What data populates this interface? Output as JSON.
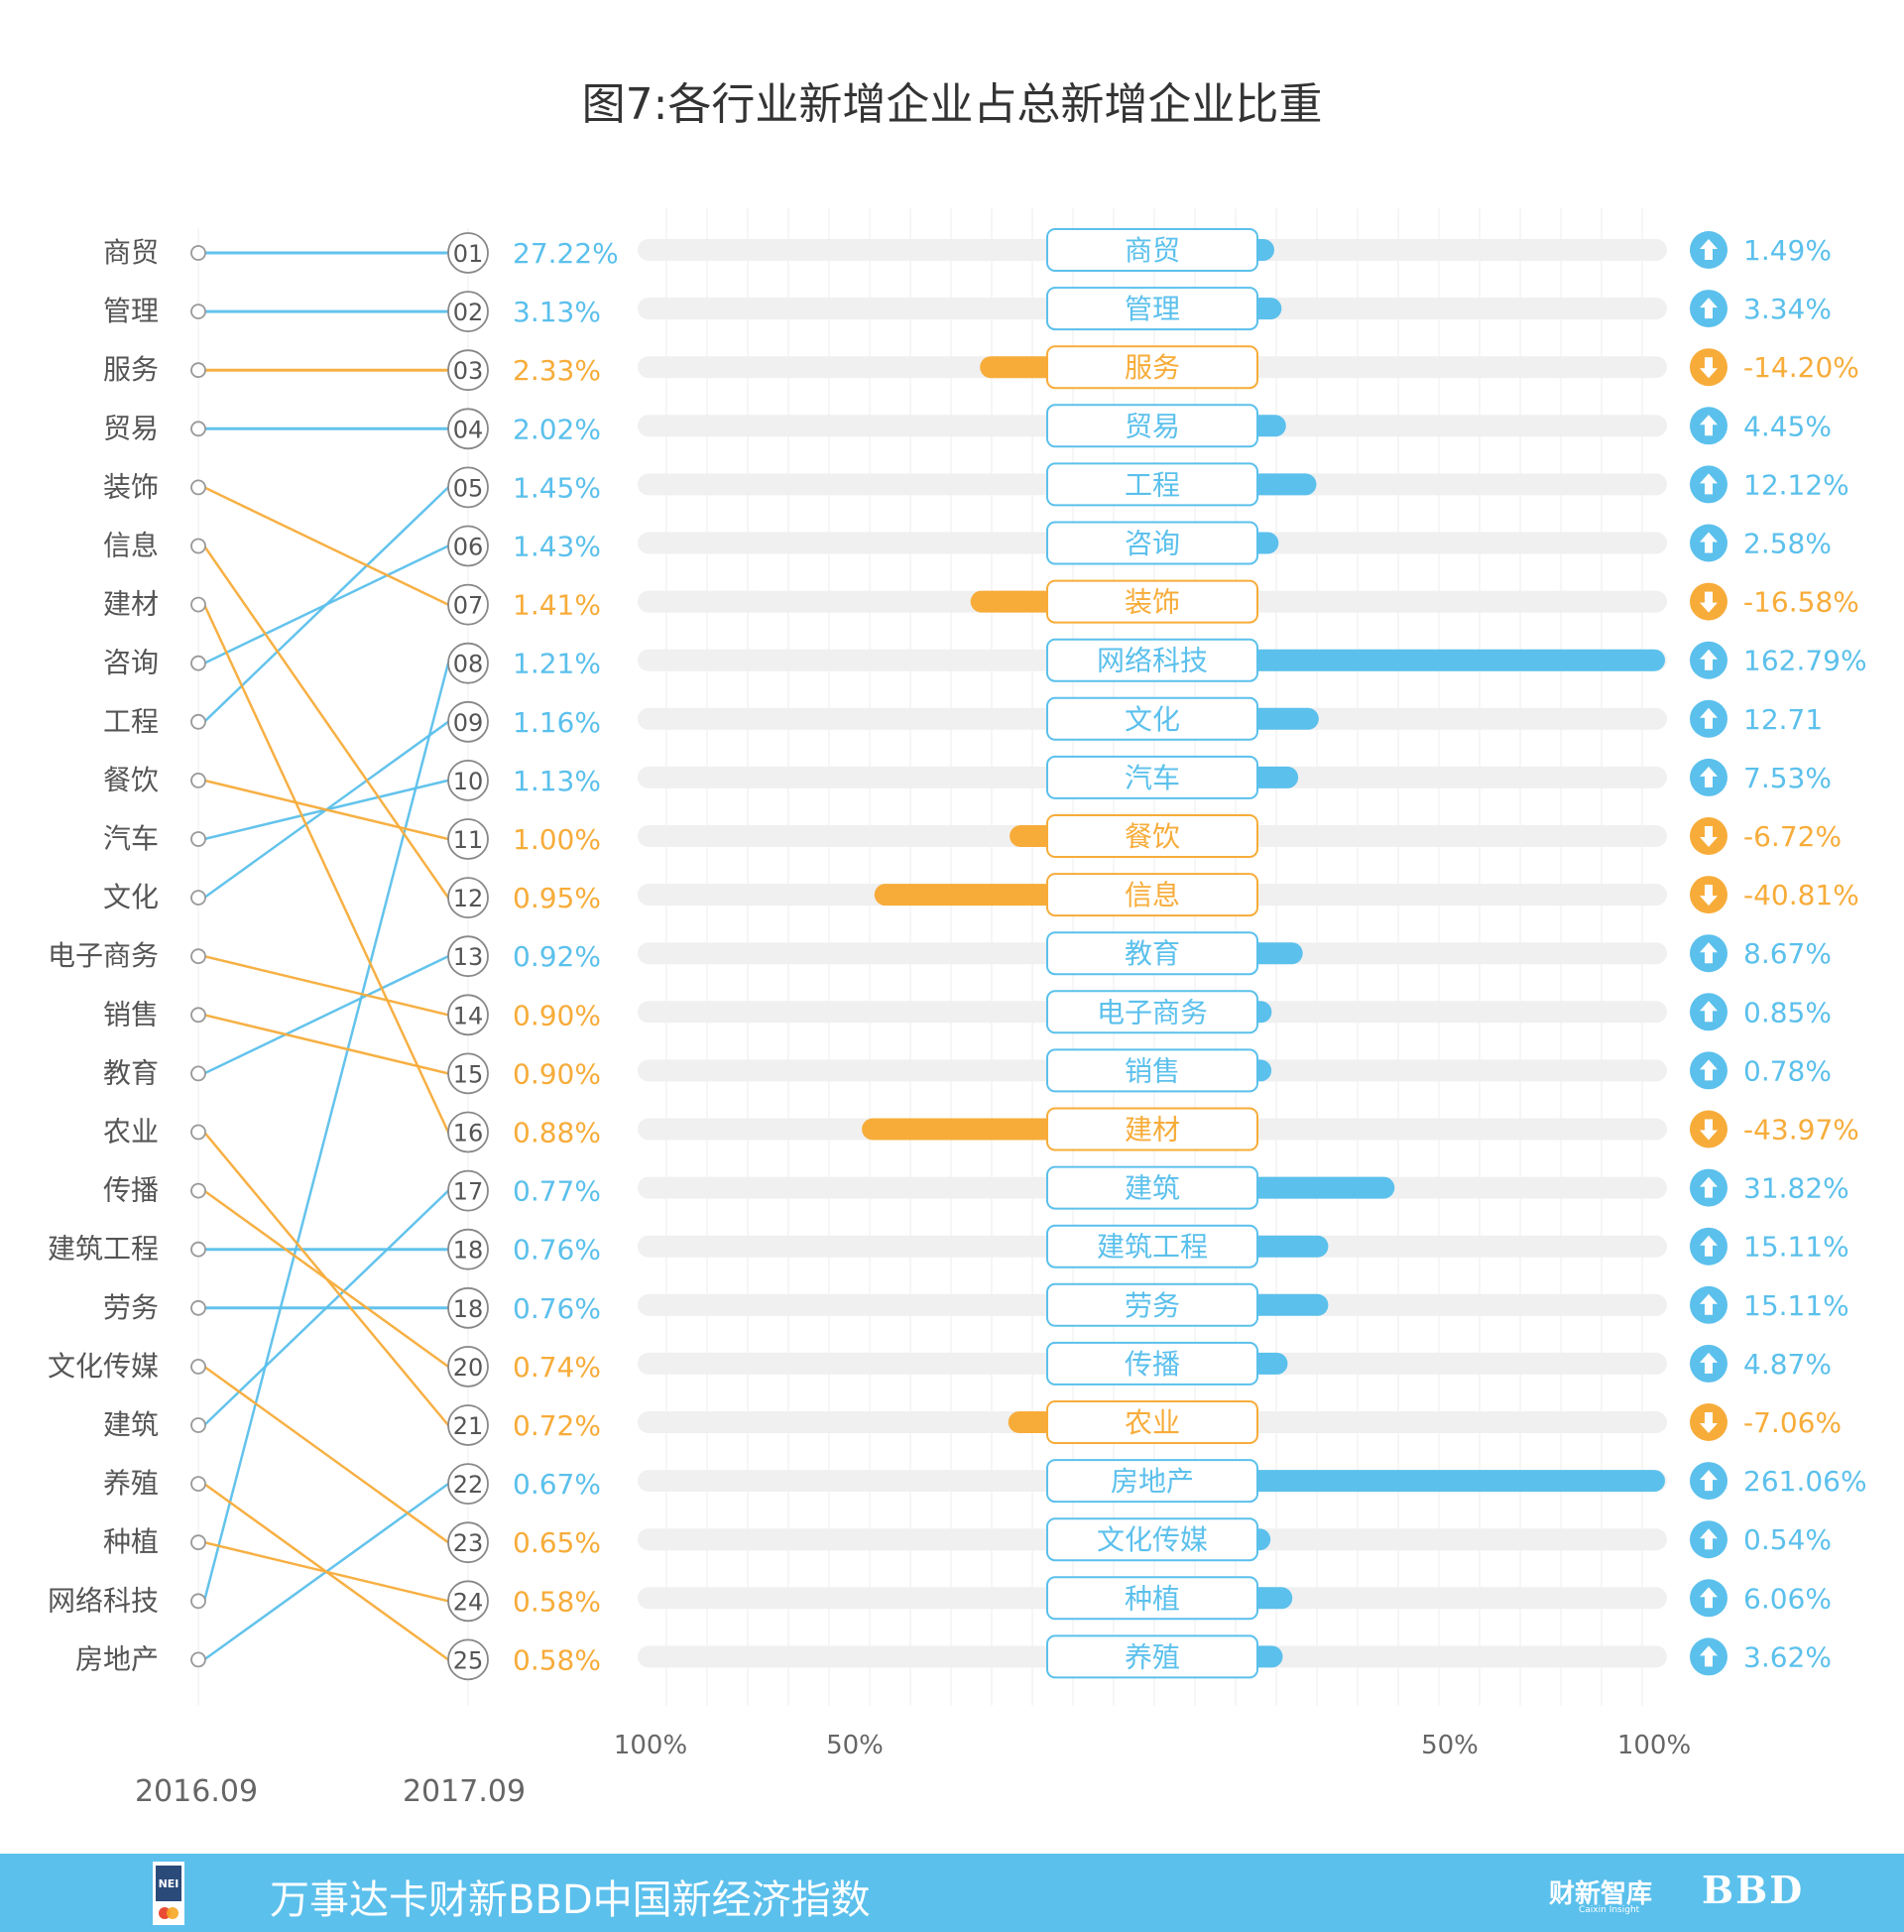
{
  "chart_data": {
    "type": "bar",
    "title": "图7:各行业新增企业占总新增企业比重",
    "period_labels": [
      "2016.09",
      "2017.09"
    ],
    "axis_ticks_left": [
      "100%",
      "50%"
    ],
    "axis_ticks_right": [
      "50%",
      "100%"
    ],
    "colors": {
      "up": "#5bc0ec",
      "down": "#f7ac3a",
      "track": "#f0f0f0",
      "grid": "#ececec",
      "text": "#555555",
      "circle": "#999999"
    },
    "rank_2016": [
      "商贸",
      "管理",
      "服务",
      "贸易",
      "装饰",
      "信息",
      "建材",
      "咨询",
      "工程",
      "餐饮",
      "汽车",
      "文化",
      "电子商务",
      "销售",
      "教育",
      "农业",
      "传播",
      "建筑工程",
      "劳务",
      "文化传媒",
      "建筑",
      "养殖",
      "种植",
      "网络科技",
      "房地产"
    ],
    "rank_2017": [
      {
        "rank": "01",
        "industry": "商贸",
        "share": "27.22%",
        "trend": "up"
      },
      {
        "rank": "02",
        "industry": "管理",
        "share": "3.13%",
        "trend": "up"
      },
      {
        "rank": "03",
        "industry": "服务",
        "share": "2.33%",
        "trend": "down"
      },
      {
        "rank": "04",
        "industry": "贸易",
        "share": "2.02%",
        "trend": "up"
      },
      {
        "rank": "05",
        "industry": "工程",
        "share": "1.45%",
        "trend": "up"
      },
      {
        "rank": "06",
        "industry": "咨询",
        "share": "1.43%",
        "trend": "up"
      },
      {
        "rank": "07",
        "industry": "装饰",
        "share": "1.41%",
        "trend": "down"
      },
      {
        "rank": "08",
        "industry": "网络科技",
        "share": "1.21%",
        "trend": "up"
      },
      {
        "rank": "09",
        "industry": "文化",
        "share": "1.16%",
        "trend": "up"
      },
      {
        "rank": "10",
        "industry": "汽车",
        "share": "1.13%",
        "trend": "up"
      },
      {
        "rank": "11",
        "industry": "餐饮",
        "share": "1.00%",
        "trend": "down"
      },
      {
        "rank": "12",
        "industry": "信息",
        "share": "0.95%",
        "trend": "down"
      },
      {
        "rank": "13",
        "industry": "教育",
        "share": "0.92%",
        "trend": "up"
      },
      {
        "rank": "14",
        "industry": "电子商务",
        "share": "0.90%",
        "trend": "down"
      },
      {
        "rank": "15",
        "industry": "销售",
        "share": "0.90%",
        "trend": "down"
      },
      {
        "rank": "16",
        "industry": "建材",
        "share": "0.88%",
        "trend": "down"
      },
      {
        "rank": "17",
        "industry": "建筑",
        "share": "0.77%",
        "trend": "up"
      },
      {
        "rank": "18",
        "industry": "建筑工程",
        "share": "0.76%",
        "trend": "up"
      },
      {
        "rank": "18",
        "industry": "劳务",
        "share": "0.76%",
        "trend": "up"
      },
      {
        "rank": "20",
        "industry": "传播",
        "share": "0.74%",
        "trend": "down"
      },
      {
        "rank": "21",
        "industry": "农业",
        "share": "0.72%",
        "trend": "down"
      },
      {
        "rank": "22",
        "industry": "房地产",
        "share": "0.67%",
        "trend": "up"
      },
      {
        "rank": "23",
        "industry": "文化传媒",
        "share": "0.65%",
        "trend": "down"
      },
      {
        "rank": "24",
        "industry": "种植",
        "share": "0.58%",
        "trend": "down"
      },
      {
        "rank": "25",
        "industry": "养殖",
        "share": "0.58%",
        "trend": "down"
      }
    ],
    "growth": [
      {
        "industry": "商贸",
        "value": 1.49,
        "label": "1.49%"
      },
      {
        "industry": "管理",
        "value": 3.34,
        "label": "3.34%"
      },
      {
        "industry": "服务",
        "value": -14.2,
        "label": "-14.20%"
      },
      {
        "industry": "贸易",
        "value": 4.45,
        "label": "4.45%"
      },
      {
        "industry": "工程",
        "value": 12.12,
        "label": "12.12%"
      },
      {
        "industry": "咨询",
        "value": 2.58,
        "label": "2.58%"
      },
      {
        "industry": "装饰",
        "value": -16.58,
        "label": "-16.58%"
      },
      {
        "industry": "网络科技",
        "value": 162.79,
        "label": "162.79%"
      },
      {
        "industry": "文化",
        "value": 12.71,
        "label": "12.71"
      },
      {
        "industry": "汽车",
        "value": 7.53,
        "label": "7.53%"
      },
      {
        "industry": "餐饮",
        "value": -6.72,
        "label": "-6.72%"
      },
      {
        "industry": "信息",
        "value": -40.81,
        "label": "-40.81%"
      },
      {
        "industry": "教育",
        "value": 8.67,
        "label": "8.67%"
      },
      {
        "industry": "电子商务",
        "value": 0.85,
        "label": "0.85%"
      },
      {
        "industry": "销售",
        "value": 0.78,
        "label": "0.78%"
      },
      {
        "industry": "建材",
        "value": -43.97,
        "label": "-43.97%"
      },
      {
        "industry": "建筑",
        "value": 31.82,
        "label": "31.82%"
      },
      {
        "industry": "建筑工程",
        "value": 15.11,
        "label": "15.11%"
      },
      {
        "industry": "劳务",
        "value": 15.11,
        "label": "15.11%"
      },
      {
        "industry": "传播",
        "value": 4.87,
        "label": "4.87%"
      },
      {
        "industry": "农业",
        "value": -7.06,
        "label": "-7.06%"
      },
      {
        "industry": "房地产",
        "value": 261.06,
        "label": "261.06%"
      },
      {
        "industry": "文化传媒",
        "value": 0.54,
        "label": "0.54%"
      },
      {
        "industry": "种植",
        "value": 6.06,
        "label": "6.06%"
      },
      {
        "industry": "养殖",
        "value": 3.62,
        "label": "3.62%"
      }
    ],
    "xlim": [
      -100,
      100
    ]
  },
  "footer": {
    "title": "万事达卡财新BBD中国新经济指数",
    "logo_text": "NEI",
    "brand": "财新智库",
    "brand_sub": "Caixin Insight",
    "bbd": "BBD"
  }
}
